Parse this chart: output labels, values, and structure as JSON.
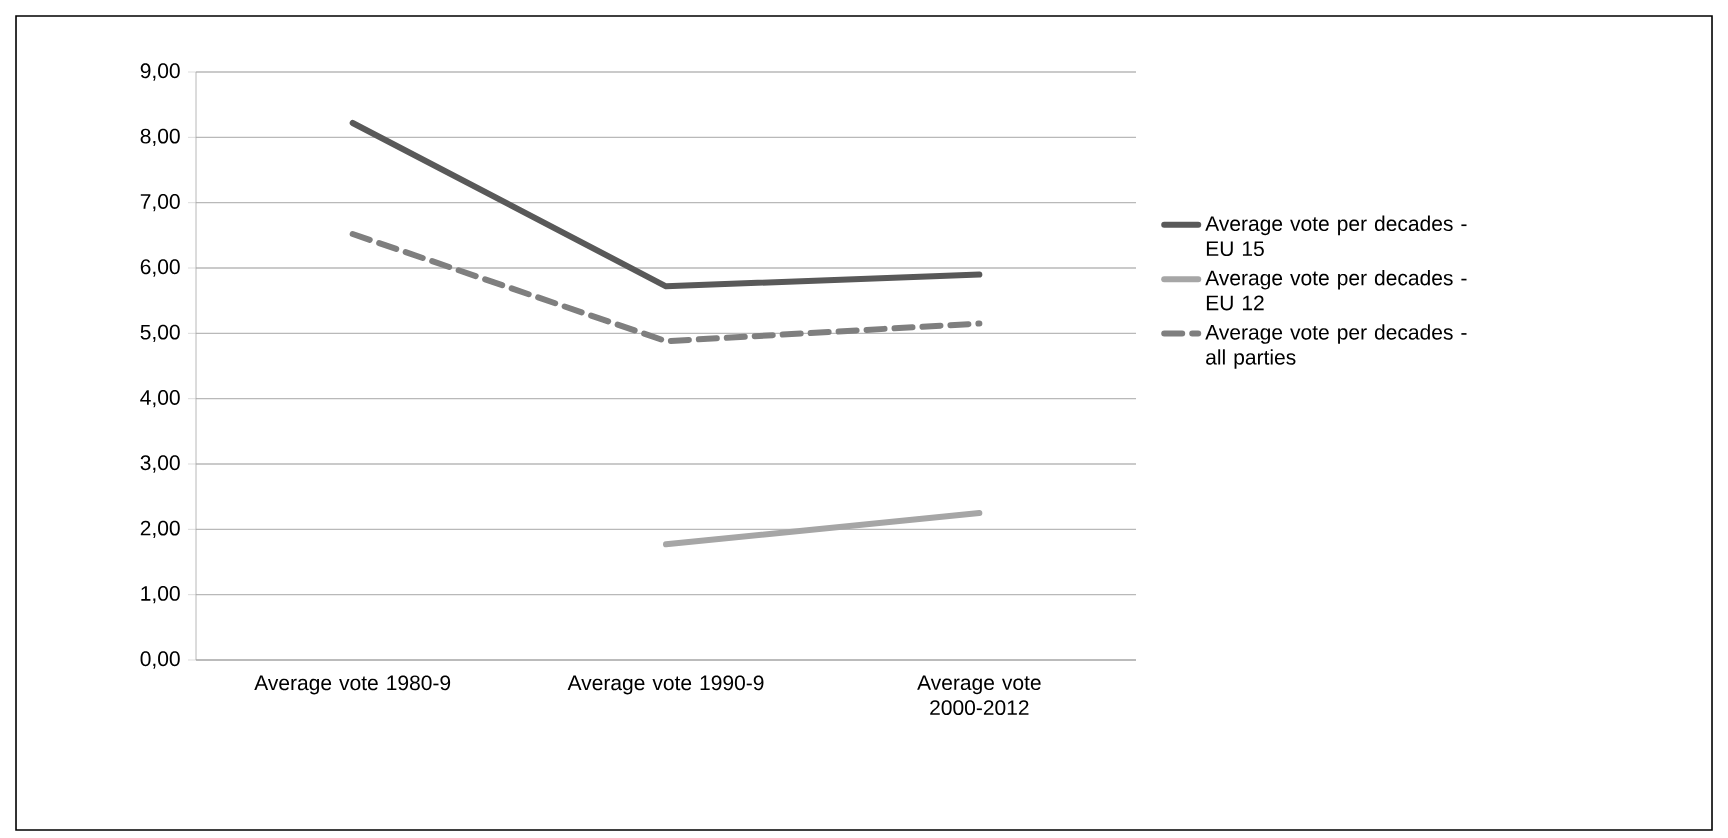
{
  "chart_data": {
    "type": "line",
    "categories": [
      "Average vote 1980-9",
      "Average vote 1990-9",
      "Average vote 2000-2012"
    ],
    "series": [
      {
        "name": "Average vote per decades - EU 15",
        "color": "#595959",
        "line_style": "solid",
        "values": [
          8.22,
          5.72,
          5.9
        ]
      },
      {
        "name": "Average vote per decades - EU 12",
        "color": "#a6a6a6",
        "line_style": "solid",
        "values": [
          null,
          1.77,
          2.25
        ]
      },
      {
        "name": "Average vote per decades - all parties",
        "color": "#7f7f7f",
        "line_style": "dashed",
        "values": [
          6.52,
          4.88,
          5.15
        ]
      }
    ],
    "ylim": [
      0,
      9
    ],
    "yticks": [
      {
        "value": 0,
        "label": "0,00"
      },
      {
        "value": 1,
        "label": "1,00"
      },
      {
        "value": 2,
        "label": "2,00"
      },
      {
        "value": 3,
        "label": "3,00"
      },
      {
        "value": 4,
        "label": "4,00"
      },
      {
        "value": 5,
        "label": "5,00"
      },
      {
        "value": 6,
        "label": "6,00"
      },
      {
        "value": 7,
        "label": "7,00"
      },
      {
        "value": 8,
        "label": "8,00"
      },
      {
        "value": 9,
        "label": "9,00"
      }
    ],
    "grid": "y",
    "legend": "right"
  }
}
